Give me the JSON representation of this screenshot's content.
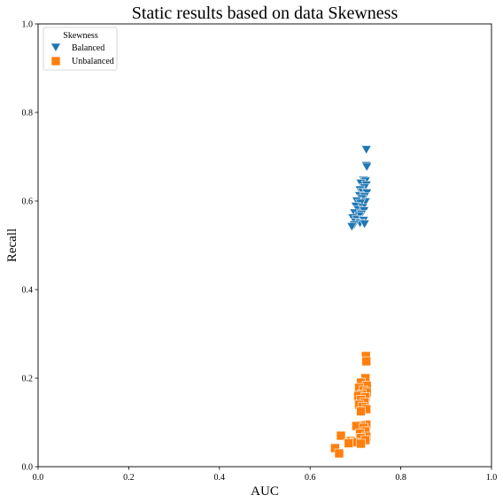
{
  "chart_data": {
    "type": "scatter",
    "title": "Static results based on data Skewness",
    "xlabel": "AUC",
    "ylabel": "Recall",
    "xlim": [
      0,
      1
    ],
    "ylim": [
      0,
      1
    ],
    "xticks": [
      "0.0",
      "0.2",
      "0.4",
      "0.6",
      "0.8",
      "1.0"
    ],
    "yticks": [
      "0.0",
      "0.2",
      "0.4",
      "0.6",
      "0.8",
      "1.0"
    ],
    "grid": false,
    "legend": {
      "title": "Skewness",
      "placement": "top-left"
    },
    "series": [
      {
        "name": "Balanced",
        "marker": "triangle-down",
        "color": "#1f77b4",
        "points": [
          [
            0.724,
            0.716
          ],
          [
            0.724,
            0.68
          ],
          [
            0.725,
            0.677
          ],
          [
            0.718,
            0.647
          ],
          [
            0.722,
            0.645
          ],
          [
            0.712,
            0.64
          ],
          [
            0.724,
            0.636
          ],
          [
            0.72,
            0.63
          ],
          [
            0.71,
            0.625
          ],
          [
            0.716,
            0.62
          ],
          [
            0.725,
            0.618
          ],
          [
            0.709,
            0.612
          ],
          [
            0.72,
            0.61
          ],
          [
            0.714,
            0.605
          ],
          [
            0.703,
            0.6
          ],
          [
            0.722,
            0.598
          ],
          [
            0.711,
            0.595
          ],
          [
            0.701,
            0.588
          ],
          [
            0.716,
            0.585
          ],
          [
            0.706,
            0.58
          ],
          [
            0.719,
            0.578
          ],
          [
            0.698,
            0.573
          ],
          [
            0.713,
            0.57
          ],
          [
            0.708,
            0.566
          ],
          [
            0.694,
            0.562
          ],
          [
            0.703,
            0.558
          ],
          [
            0.718,
            0.556
          ],
          [
            0.7,
            0.552
          ],
          [
            0.71,
            0.55
          ],
          [
            0.72,
            0.548
          ],
          [
            0.697,
            0.546
          ],
          [
            0.692,
            0.542
          ]
        ]
      },
      {
        "name": "Unbalanced",
        "marker": "square",
        "color": "#ff7f0e",
        "points": [
          [
            0.723,
            0.25
          ],
          [
            0.724,
            0.238
          ],
          [
            0.722,
            0.2
          ],
          [
            0.712,
            0.19
          ],
          [
            0.725,
            0.183
          ],
          [
            0.708,
            0.178
          ],
          [
            0.718,
            0.172
          ],
          [
            0.725,
            0.168
          ],
          [
            0.714,
            0.163
          ],
          [
            0.706,
            0.16
          ],
          [
            0.722,
            0.157
          ],
          [
            0.712,
            0.151
          ],
          [
            0.72,
            0.145
          ],
          [
            0.708,
            0.14
          ],
          [
            0.716,
            0.135
          ],
          [
            0.724,
            0.13
          ],
          [
            0.712,
            0.125
          ],
          [
            0.724,
            0.095
          ],
          [
            0.712,
            0.093
          ],
          [
            0.702,
            0.092
          ],
          [
            0.718,
            0.088
          ],
          [
            0.722,
            0.08
          ],
          [
            0.71,
            0.075
          ],
          [
            0.724,
            0.068
          ],
          [
            0.712,
            0.065
          ],
          [
            0.722,
            0.06
          ],
          [
            0.69,
            0.058
          ],
          [
            0.698,
            0.055
          ],
          [
            0.712,
            0.052
          ],
          [
            0.668,
            0.07
          ],
          [
            0.685,
            0.053
          ],
          [
            0.655,
            0.042
          ],
          [
            0.664,
            0.03
          ]
        ]
      }
    ]
  }
}
